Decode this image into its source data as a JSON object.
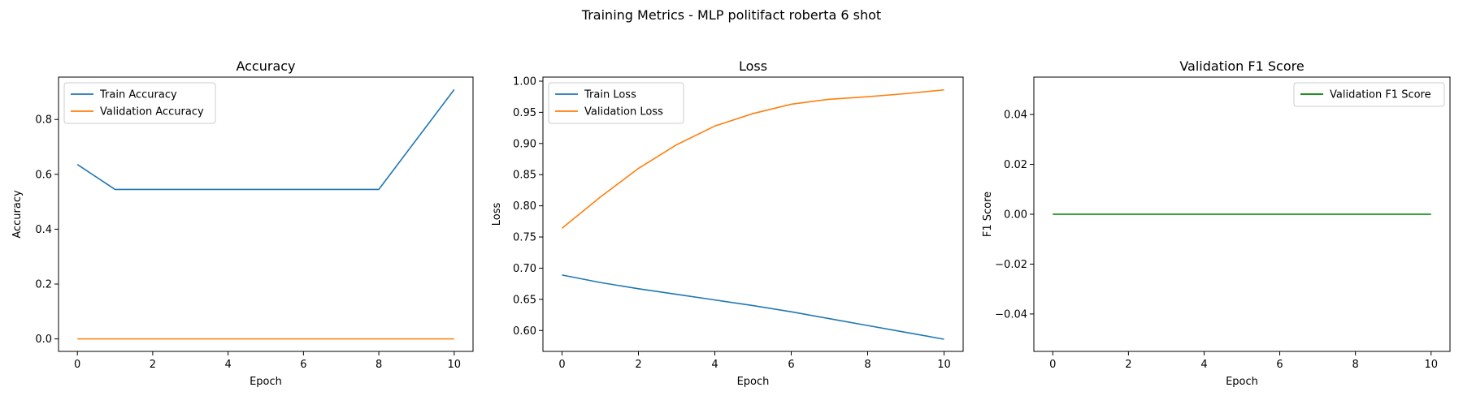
{
  "figure": {
    "title": "Training Metrics - MLP politifact roberta 6 shot"
  },
  "chart_data": [
    {
      "type": "line",
      "title": "Accuracy",
      "xlabel": "Epoch",
      "ylabel": "Accuracy",
      "xlim": [
        -0.5,
        10.5
      ],
      "ylim": [
        -0.0455,
        0.9545
      ],
      "xticks": [
        0,
        2,
        4,
        6,
        8,
        10
      ],
      "xtick_labels": [
        "0",
        "2",
        "4",
        "6",
        "8",
        "10"
      ],
      "yticks": [
        0.0,
        0.2,
        0.4,
        0.6,
        0.8
      ],
      "ytick_labels": [
        "0.0",
        "0.2",
        "0.4",
        "0.6",
        "0.8"
      ],
      "x": [
        0,
        1,
        2,
        3,
        4,
        5,
        6,
        7,
        8,
        9,
        10
      ],
      "series": [
        {
          "name": "Train Accuracy",
          "color": "#1f77b4",
          "values": [
            0.636,
            0.545,
            0.545,
            0.545,
            0.545,
            0.545,
            0.545,
            0.545,
            0.545,
            0.727,
            0.909
          ]
        },
        {
          "name": "Validation Accuracy",
          "color": "#ff7f0e",
          "values": [
            0,
            0,
            0,
            0,
            0,
            0,
            0,
            0,
            0,
            0,
            0
          ]
        }
      ],
      "legend": "top-left",
      "grid": false
    },
    {
      "type": "line",
      "title": "Loss",
      "xlabel": "Epoch",
      "ylabel": "Loss",
      "xlim": [
        -0.5,
        10.5
      ],
      "ylim": [
        0.5665,
        1.0065
      ],
      "xticks": [
        0,
        2,
        4,
        6,
        8,
        10
      ],
      "xtick_labels": [
        "0",
        "2",
        "4",
        "6",
        "8",
        "10"
      ],
      "yticks": [
        0.6,
        0.65,
        0.7,
        0.75,
        0.8,
        0.85,
        0.9,
        0.95,
        1.0
      ],
      "ytick_labels": [
        "0.60",
        "0.65",
        "0.70",
        "0.75",
        "0.80",
        "0.85",
        "0.90",
        "0.95",
        "1.00"
      ],
      "x": [
        0,
        1,
        2,
        3,
        4,
        5,
        6,
        7,
        8,
        9,
        10
      ],
      "series": [
        {
          "name": "Train Loss",
          "color": "#1f77b4",
          "values": [
            0.689,
            0.677,
            0.667,
            0.658,
            0.649,
            0.64,
            0.63,
            0.619,
            0.608,
            0.597,
            0.586
          ]
        },
        {
          "name": "Validation Loss",
          "color": "#ff7f0e",
          "values": [
            0.764,
            0.814,
            0.86,
            0.898,
            0.928,
            0.948,
            0.963,
            0.971,
            0.975,
            0.98,
            0.986
          ]
        }
      ],
      "legend": "top-left",
      "grid": false
    },
    {
      "type": "line",
      "title": "Validation F1 Score",
      "xlabel": "Epoch",
      "ylabel": "F1 Score",
      "xlim": [
        -0.5,
        10.5
      ],
      "ylim": [
        -0.055,
        0.055
      ],
      "xticks": [
        0,
        2,
        4,
        6,
        8,
        10
      ],
      "xtick_labels": [
        "0",
        "2",
        "4",
        "6",
        "8",
        "10"
      ],
      "yticks": [
        -0.04,
        -0.02,
        0.0,
        0.02,
        0.04
      ],
      "ytick_labels": [
        "−0.04",
        "−0.02",
        "0.00",
        "0.02",
        "0.04"
      ],
      "x": [
        0,
        1,
        2,
        3,
        4,
        5,
        6,
        7,
        8,
        9,
        10
      ],
      "series": [
        {
          "name": "Validation F1 Score",
          "color": "#008000",
          "values": [
            0,
            0,
            0,
            0,
            0,
            0,
            0,
            0,
            0,
            0,
            0
          ]
        }
      ],
      "legend": "top-right",
      "grid": false
    }
  ]
}
